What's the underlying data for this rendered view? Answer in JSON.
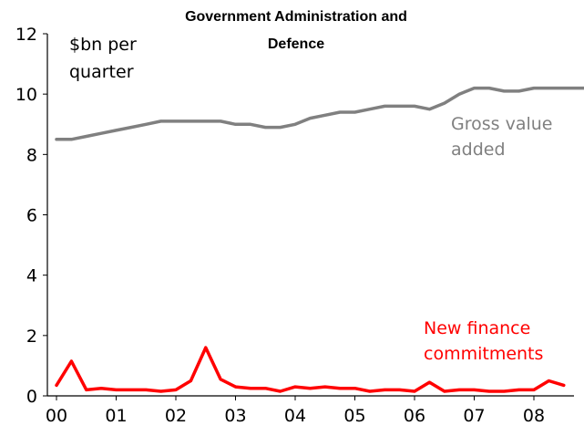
{
  "chart_data": {
    "type": "line",
    "title_line1": "Government Administration and",
    "title_line2": "Defence",
    "unit_line1": "$bn per",
    "unit_line2": "quarter",
    "ylim": [
      0,
      12
    ],
    "yticks": [
      "0",
      "2",
      "4",
      "6",
      "8",
      "10",
      "12"
    ],
    "x_tick_labels": [
      "00",
      "01",
      "02",
      "03",
      "04",
      "05",
      "06",
      "07",
      "08"
    ],
    "x_start_year": 2000,
    "quarters_per_year": 4,
    "series": [
      {
        "name_line1": "Gross value",
        "name_line2": "added",
        "color": "#808080",
        "values": [
          8.5,
          8.5,
          8.6,
          8.7,
          8.8,
          8.9,
          9.0,
          9.1,
          9.1,
          9.1,
          9.1,
          9.1,
          9.0,
          9.0,
          8.9,
          8.9,
          9.0,
          9.2,
          9.3,
          9.4,
          9.4,
          9.5,
          9.6,
          9.6,
          9.6,
          9.5,
          9.7,
          10.0,
          10.2,
          10.2,
          10.1,
          10.1,
          10.2,
          10.2,
          10.2,
          10.2,
          10.2
        ]
      },
      {
        "name_line1": "New finance",
        "name_line2": "commitments",
        "color": "#ff0000",
        "values": [
          0.35,
          1.15,
          0.2,
          0.25,
          0.2,
          0.2,
          0.2,
          0.15,
          0.2,
          0.5,
          1.6,
          0.55,
          0.3,
          0.25,
          0.25,
          0.15,
          0.3,
          0.25,
          0.3,
          0.25,
          0.25,
          0.15,
          0.2,
          0.2,
          0.15,
          0.45,
          0.15,
          0.2,
          0.2,
          0.15,
          0.15,
          0.2,
          0.2,
          0.5,
          0.35
        ]
      }
    ],
    "grid": false
  }
}
